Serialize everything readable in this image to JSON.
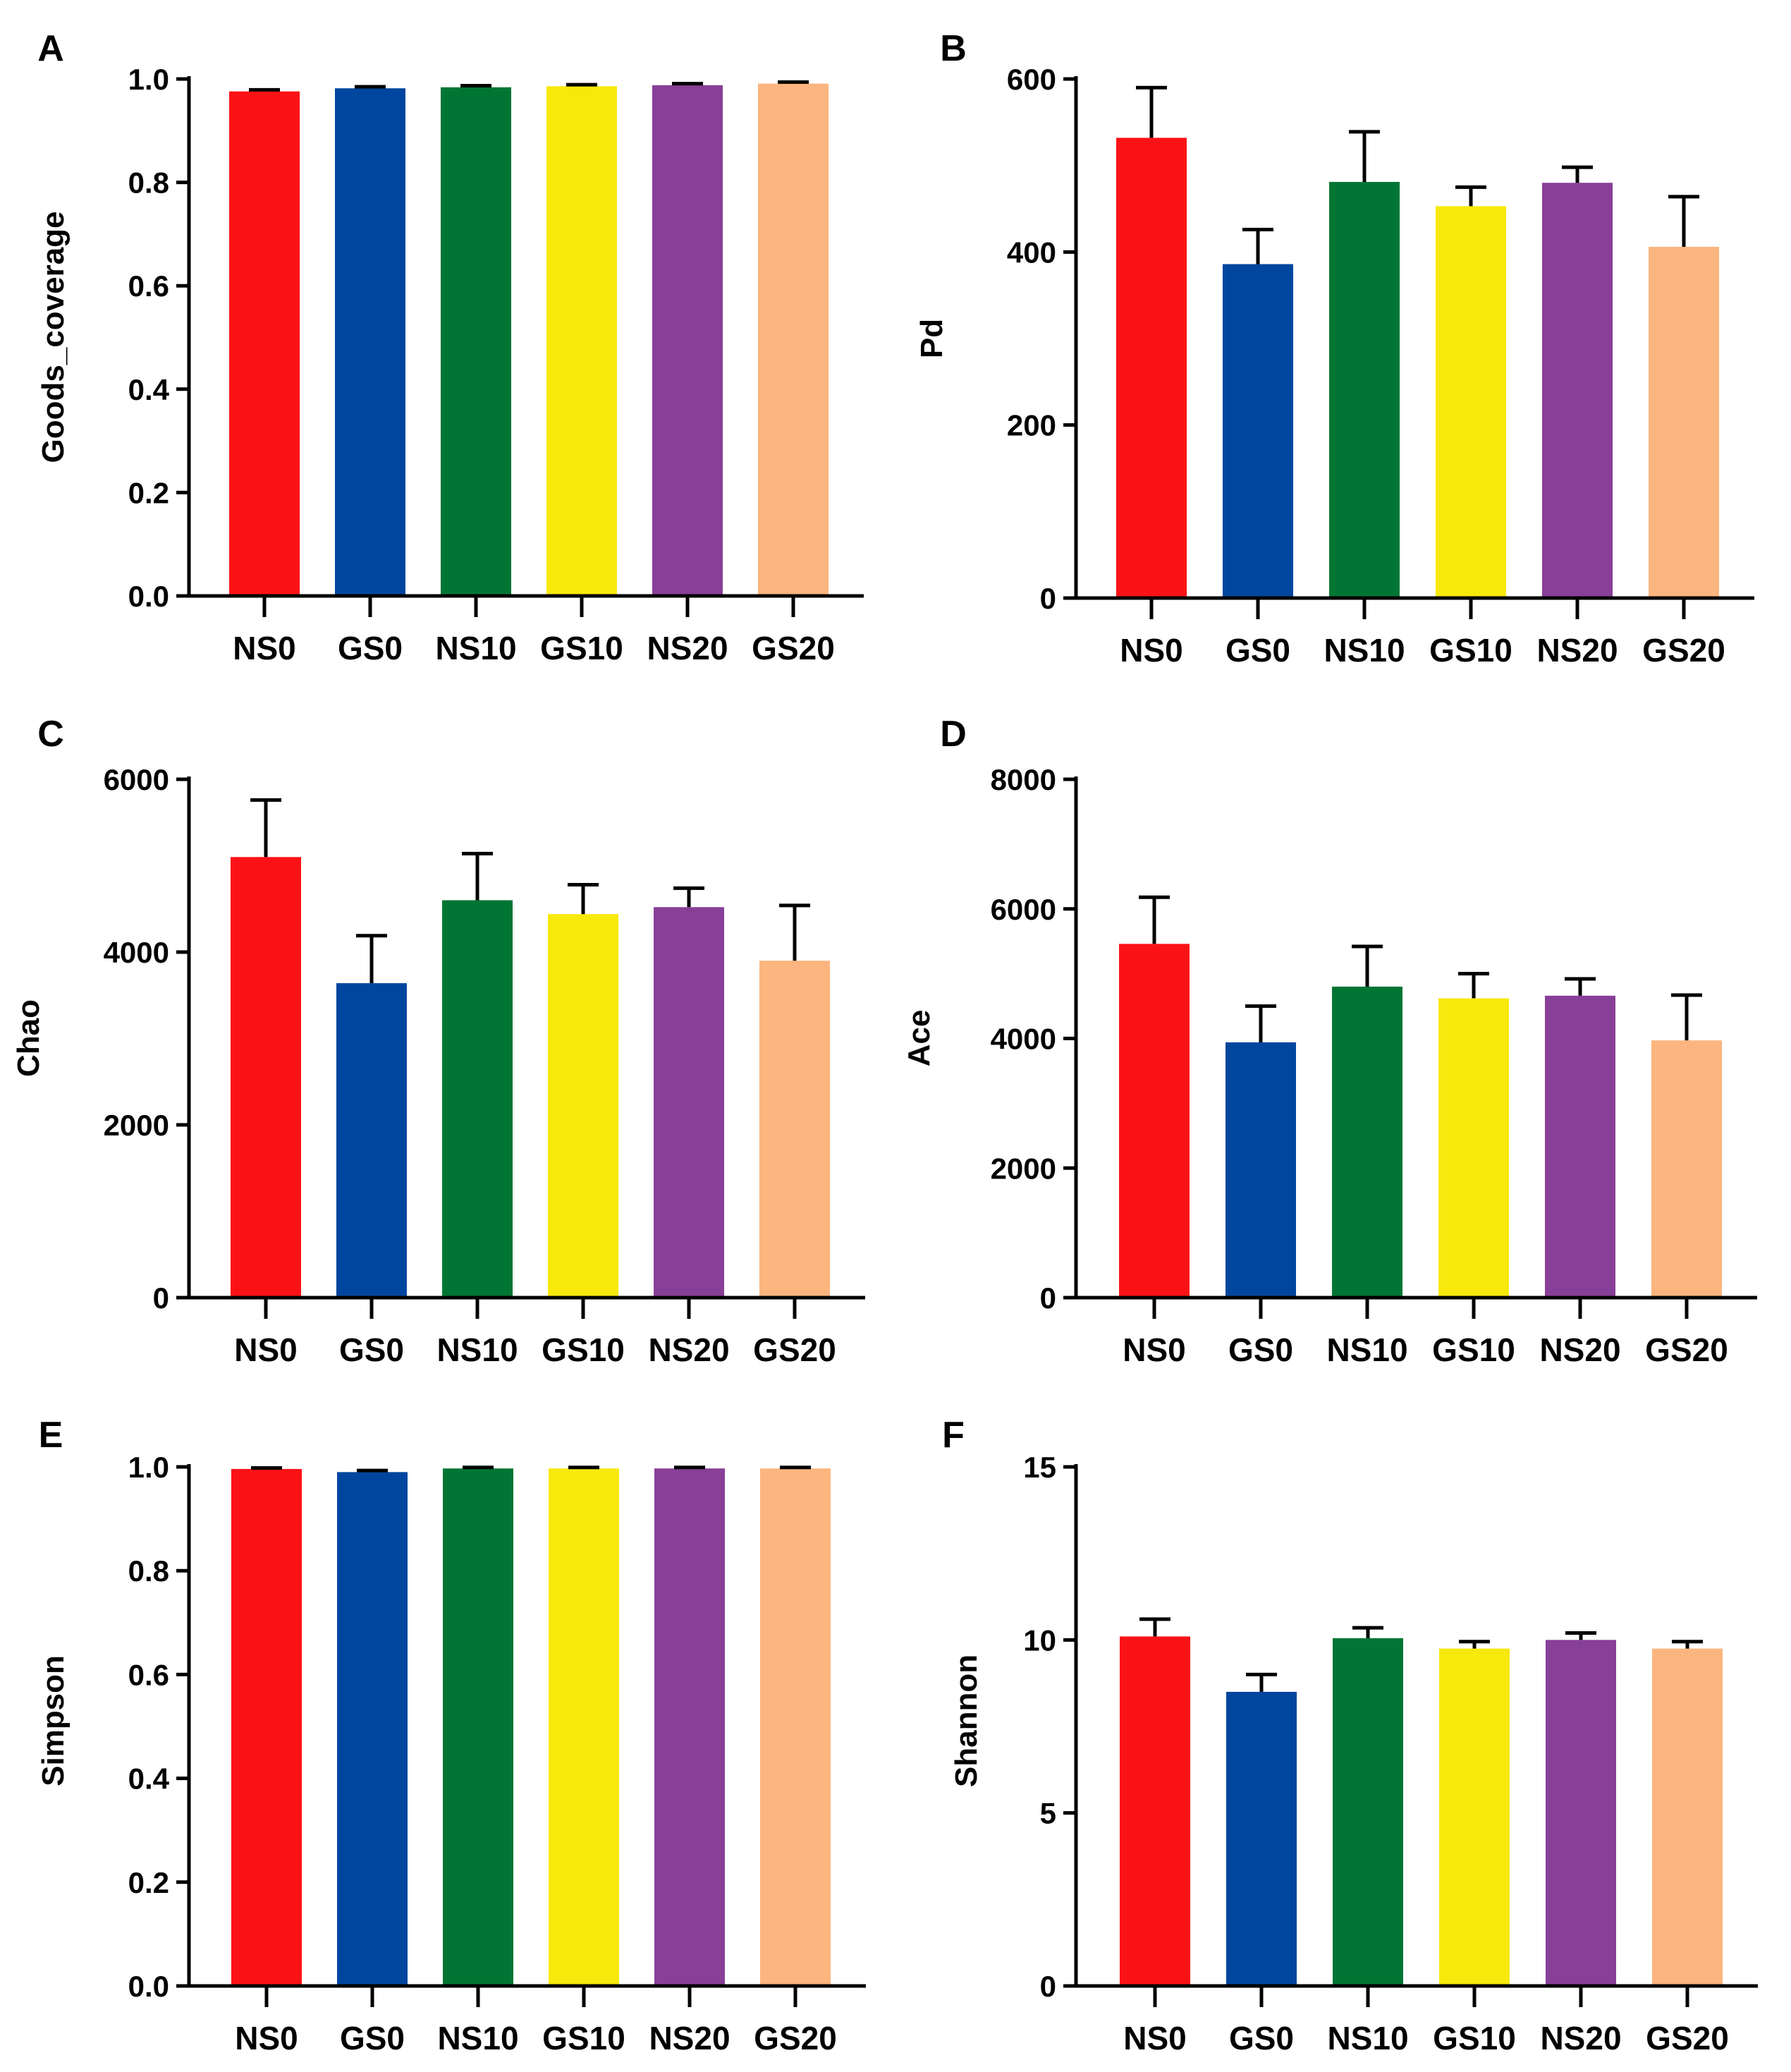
{
  "figure": {
    "categories": [
      "NS0",
      "GS0",
      "NS10",
      "GS10",
      "NS20",
      "GS20"
    ],
    "colors": [
      "#fb1216",
      "#01469e",
      "#017634",
      "#f7e90c",
      "#883f97",
      "#fcb57e"
    ]
  },
  "chart_data": [
    {
      "panel": "A",
      "type": "bar",
      "categories": [
        "NS0",
        "GS0",
        "NS10",
        "GS10",
        "NS20",
        "GS20"
      ],
      "values": [
        0.976,
        0.982,
        0.984,
        0.986,
        0.988,
        0.991
      ],
      "errors": [
        0.003,
        0.003,
        0.003,
        0.003,
        0.003,
        0.003
      ],
      "ylabel": "Goods_coverage",
      "xlabel": "",
      "ylim": [
        0,
        1.0
      ],
      "yticks": [
        "0.0",
        "0.2",
        "0.4",
        "0.6",
        "0.8",
        "1.0"
      ]
    },
    {
      "panel": "B",
      "type": "bar",
      "categories": [
        "NS0",
        "GS0",
        "NS10",
        "GS10",
        "NS20",
        "GS20"
      ],
      "values": [
        532,
        386,
        481,
        453,
        480,
        406
      ],
      "errors": [
        58,
        40,
        58,
        22,
        18,
        58
      ],
      "ylabel": "Pd",
      "xlabel": "",
      "ylim": [
        0,
        600
      ],
      "yticks": [
        "0",
        "200",
        "400",
        "600"
      ]
    },
    {
      "panel": "C",
      "type": "bar",
      "categories": [
        "NS0",
        "GS0",
        "NS10",
        "GS10",
        "NS20",
        "GS20"
      ],
      "values": [
        5100,
        3640,
        4600,
        4440,
        4520,
        3900
      ],
      "errors": [
        660,
        550,
        540,
        340,
        220,
        640
      ],
      "ylabel": "Chao",
      "xlabel": "",
      "ylim": [
        0,
        6000
      ],
      "yticks": [
        "0",
        "2000",
        "4000",
        "6000"
      ]
    },
    {
      "panel": "D",
      "type": "bar",
      "categories": [
        "NS0",
        "GS0",
        "NS10",
        "GS10",
        "NS20",
        "GS20"
      ],
      "values": [
        5460,
        3940,
        4800,
        4620,
        4660,
        3970
      ],
      "errors": [
        720,
        560,
        620,
        380,
        260,
        700
      ],
      "ylabel": "Ace",
      "xlabel": "",
      "ylim": [
        0,
        8000
      ],
      "yticks": [
        "0",
        "2000",
        "4000",
        "6000",
        "8000"
      ]
    },
    {
      "panel": "E",
      "type": "bar",
      "categories": [
        "NS0",
        "GS0",
        "NS10",
        "GS10",
        "NS20",
        "GS20"
      ],
      "values": [
        0.996,
        0.99,
        0.997,
        0.997,
        0.997,
        0.997
      ],
      "errors": [
        0.002,
        0.003,
        0.002,
        0.002,
        0.002,
        0.002
      ],
      "ylabel": "Simpson",
      "xlabel": "",
      "ylim": [
        0,
        1.0
      ],
      "yticks": [
        "0.0",
        "0.2",
        "0.4",
        "0.6",
        "0.8",
        "1.0"
      ]
    },
    {
      "panel": "F",
      "type": "bar",
      "categories": [
        "NS0",
        "GS0",
        "NS10",
        "GS10",
        "NS20",
        "GS20"
      ],
      "values": [
        10.1,
        8.5,
        10.05,
        9.75,
        10.0,
        9.75
      ],
      "errors": [
        0.5,
        0.5,
        0.3,
        0.2,
        0.2,
        0.2
      ],
      "ylabel": "Shannon",
      "xlabel": "",
      "ylim": [
        0,
        15
      ],
      "yticks": [
        "0",
        "5",
        "10",
        "15"
      ]
    }
  ]
}
